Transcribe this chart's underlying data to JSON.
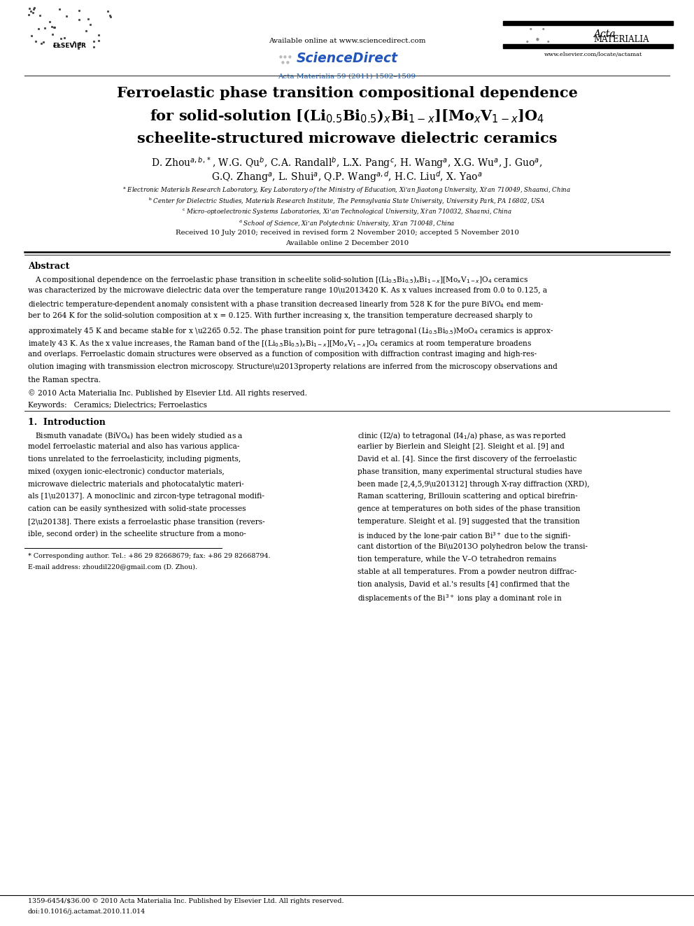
{
  "page_width": 9.92,
  "page_height": 13.23,
  "bg_color": "#ffffff",
  "available_online": "Available online at www.sciencedirect.com",
  "journal_info": "Acta Materialia 59 (2011) 1502–1509",
  "website": "www.elsevier.com/locate/actamat",
  "title1": "Ferroelastic phase transition compositional dependence",
  "title3": "scheelite-structured microwave dielectric ceramics",
  "author_line1": "D. Zhou",
  "author_line2": "G.Q. Zhang",
  "affil1": "Electronic Materials Research Laboratory, Key Laboratory of the Ministry of Education, Xi’an Jiaotong University, Xi’an 710049, Shaanxi, China",
  "affil2": "Center for Dielectric Studies, Materials Research Institute, The Pennsylvania State University, University Park, PA 16802, USA",
  "affil3": "Micro-optoelectronic Systems Laboratories, Xi’an Technological University, Xi’an 710032, Shaanxi, China",
  "affil4": "School of Science, Xi’an Polytechnic University, Xi’an 710048, China",
  "dates1": "Received 10 July 2010; received in revised form 2 November 2010; accepted 5 November 2010",
  "dates2": "Available online 2 December 2010",
  "abstract_title": "Abstract",
  "copyright": "© 2010 Acta Materialia Inc. Published by Elsevier Ltd. All rights reserved.",
  "keywords": "Keywords:   Ceramics; Dielectrics; Ferroelastics",
  "section1_title": "1.  Introduction",
  "footnote1": "* Corresponding author. Tel.: +86 29 82668679; fax: +86 29 82668794.",
  "footnote2": "E-mail address: zhoudil220@gmail.com (D. Zhou).",
  "bottom1": "1359-6454/$36.00 © 2010 Acta Materialia Inc. Published by Elsevier Ltd. All rights reserved.",
  "bottom2": "doi:10.1016/j.actamat.2010.11.014",
  "text_color": "#000000",
  "blue_color": "#1a5aaa",
  "sciencedirect_color": "#2255bb"
}
